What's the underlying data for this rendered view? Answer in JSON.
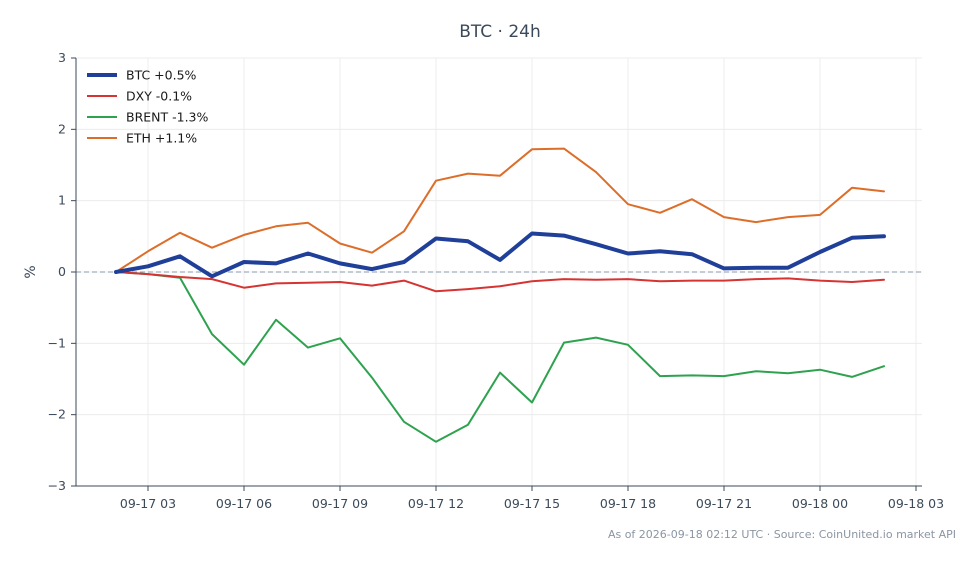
{
  "chart_data": {
    "type": "line",
    "title": "BTC · 24h",
    "xlabel": "",
    "ylabel": "%",
    "ylim": [
      -3,
      3
    ],
    "y_ticks": [
      "3",
      "2",
      "1",
      "0",
      "−1",
      "−2",
      "−3"
    ],
    "x_ticks": [
      "09-17 03",
      "09-17 06",
      "09-17 09",
      "09-17 12",
      "09-17 15",
      "09-17 18",
      "09-17 21",
      "09-18 00",
      "09-18 03"
    ],
    "grid": true,
    "zero_line": "dashed",
    "legend_position": "top-left",
    "x": [
      "09-17 02",
      "09-17 03",
      "09-17 04",
      "09-17 05",
      "09-17 06",
      "09-17 07",
      "09-17 08",
      "09-17 09",
      "09-17 10",
      "09-17 11",
      "09-17 12",
      "09-17 13",
      "09-17 14",
      "09-17 15",
      "09-17 16",
      "09-17 17",
      "09-17 18",
      "09-17 19",
      "09-17 20",
      "09-17 21",
      "09-17 22",
      "09-17 23",
      "09-18 00",
      "09-18 01",
      "09-18 02"
    ],
    "series": [
      {
        "name": "BTC +0.5%",
        "color": "#1f3f99",
        "width": 4,
        "values": [
          0.0,
          0.08,
          0.22,
          -0.06,
          0.14,
          0.12,
          0.26,
          0.12,
          0.04,
          0.14,
          0.47,
          0.43,
          0.17,
          0.54,
          0.51,
          0.39,
          0.26,
          0.29,
          0.25,
          0.05,
          0.06,
          0.06,
          0.28,
          0.48,
          0.5
        ]
      },
      {
        "name": "DXY -0.1%",
        "color": "#d63333",
        "width": 2,
        "values": [
          0.0,
          -0.03,
          -0.07,
          -0.1,
          -0.22,
          -0.16,
          -0.15,
          -0.14,
          -0.19,
          -0.12,
          -0.27,
          -0.24,
          -0.2,
          -0.13,
          -0.1,
          -0.11,
          -0.1,
          -0.13,
          -0.12,
          -0.12,
          -0.1,
          -0.09,
          -0.12,
          -0.14,
          -0.11
        ]
      },
      {
        "name": "BRENT -1.3%",
        "color": "#2ea24f",
        "width": 2,
        "values": [
          0.0,
          -0.03,
          -0.08,
          -0.87,
          -1.3,
          -0.67,
          -1.06,
          -0.93,
          -1.48,
          -2.1,
          -2.38,
          -2.14,
          -1.41,
          -1.83,
          -0.99,
          -0.92,
          -1.02,
          -1.46,
          -1.45,
          -1.46,
          -1.39,
          -1.42,
          -1.37,
          -1.47,
          -1.32
        ]
      },
      {
        "name": "ETH +1.1%",
        "color": "#dd6e2a",
        "width": 2,
        "values": [
          0.0,
          0.29,
          0.55,
          0.34,
          0.52,
          0.64,
          0.69,
          0.4,
          0.27,
          0.57,
          1.28,
          1.38,
          1.35,
          1.72,
          1.73,
          1.4,
          0.95,
          0.83,
          1.02,
          0.77,
          0.7,
          0.77,
          0.8,
          1.18,
          1.13
        ]
      }
    ]
  },
  "footer": "As of 2026-09-18 02:12 UTC · Source: CoinUnited.io market API"
}
